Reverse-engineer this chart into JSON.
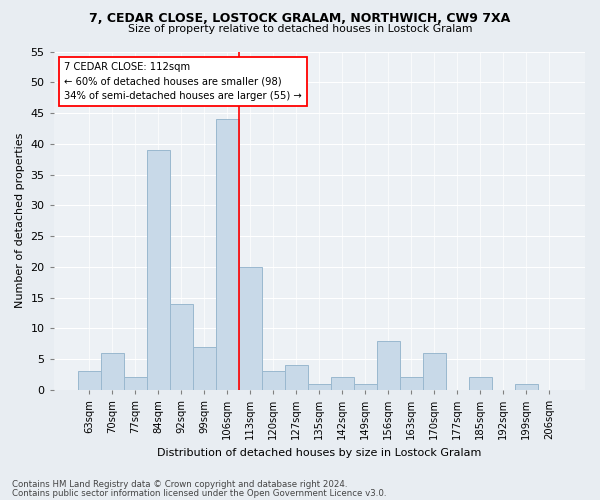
{
  "title1": "7, CEDAR CLOSE, LOSTOCK GRALAM, NORTHWICH, CW9 7XA",
  "title2": "Size of property relative to detached houses in Lostock Gralam",
  "xlabel": "Distribution of detached houses by size in Lostock Gralam",
  "ylabel": "Number of detached properties",
  "categories": [
    "63sqm",
    "70sqm",
    "77sqm",
    "84sqm",
    "92sqm",
    "99sqm",
    "106sqm",
    "113sqm",
    "120sqm",
    "127sqm",
    "135sqm",
    "142sqm",
    "149sqm",
    "156sqm",
    "163sqm",
    "170sqm",
    "177sqm",
    "185sqm",
    "192sqm",
    "199sqm",
    "206sqm"
  ],
  "values": [
    3,
    6,
    2,
    39,
    14,
    7,
    44,
    20,
    3,
    4,
    1,
    2,
    1,
    8,
    2,
    6,
    0,
    2,
    0,
    1,
    0
  ],
  "bar_color": "#c8d9e8",
  "bar_edge_color": "#9ab8cf",
  "vline_x": 7,
  "annotation_text": "7 CEDAR CLOSE: 112sqm\n← 60% of detached houses are smaller (98)\n34% of semi-detached houses are larger (55) →",
  "ylim": [
    0,
    55
  ],
  "yticks": [
    0,
    5,
    10,
    15,
    20,
    25,
    30,
    35,
    40,
    45,
    50,
    55
  ],
  "footer1": "Contains HM Land Registry data © Crown copyright and database right 2024.",
  "footer2": "Contains public sector information licensed under the Open Government Licence v3.0.",
  "bg_color": "#e8edf2",
  "plot_bg_color": "#edf1f5"
}
